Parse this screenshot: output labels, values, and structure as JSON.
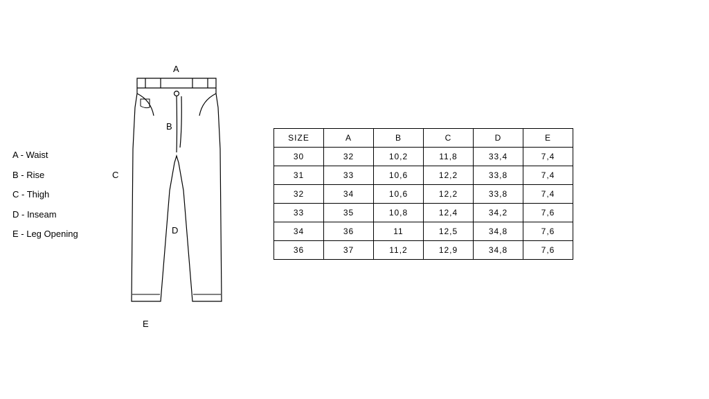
{
  "legend": {
    "items": [
      {
        "text": "A - Waist"
      },
      {
        "text": "B - Rise"
      },
      {
        "text": "C - Thigh"
      },
      {
        "text": "D - Inseam"
      },
      {
        "text": "E - Leg Opening"
      }
    ]
  },
  "markers": {
    "A": "A",
    "B": "B",
    "C": "C",
    "D": "D",
    "E": "E"
  },
  "table": {
    "columns": [
      "SIZE",
      "A",
      "B",
      "C",
      "D",
      "E"
    ],
    "rows": [
      [
        "30",
        "32",
        "10,2",
        "11,8",
        "33,4",
        "7,4"
      ],
      [
        "31",
        "33",
        "10,6",
        "12,2",
        "33,8",
        "7,4"
      ],
      [
        "32",
        "34",
        "10,6",
        "12,2",
        "33,8",
        "7,4"
      ],
      [
        "33",
        "35",
        "10,8",
        "12,4",
        "34,2",
        "7,6"
      ],
      [
        "34",
        "36",
        "11",
        "12,5",
        "34,8",
        "7,6"
      ],
      [
        "36",
        "37",
        "11,2",
        "12,9",
        "34,8",
        "7,6"
      ]
    ],
    "border_color": "#000000",
    "background_color": "#ffffff",
    "font_size": 12
  },
  "diagram": {
    "stroke": "#000000",
    "fill": "#ffffff",
    "stroke_width": 1.2
  }
}
